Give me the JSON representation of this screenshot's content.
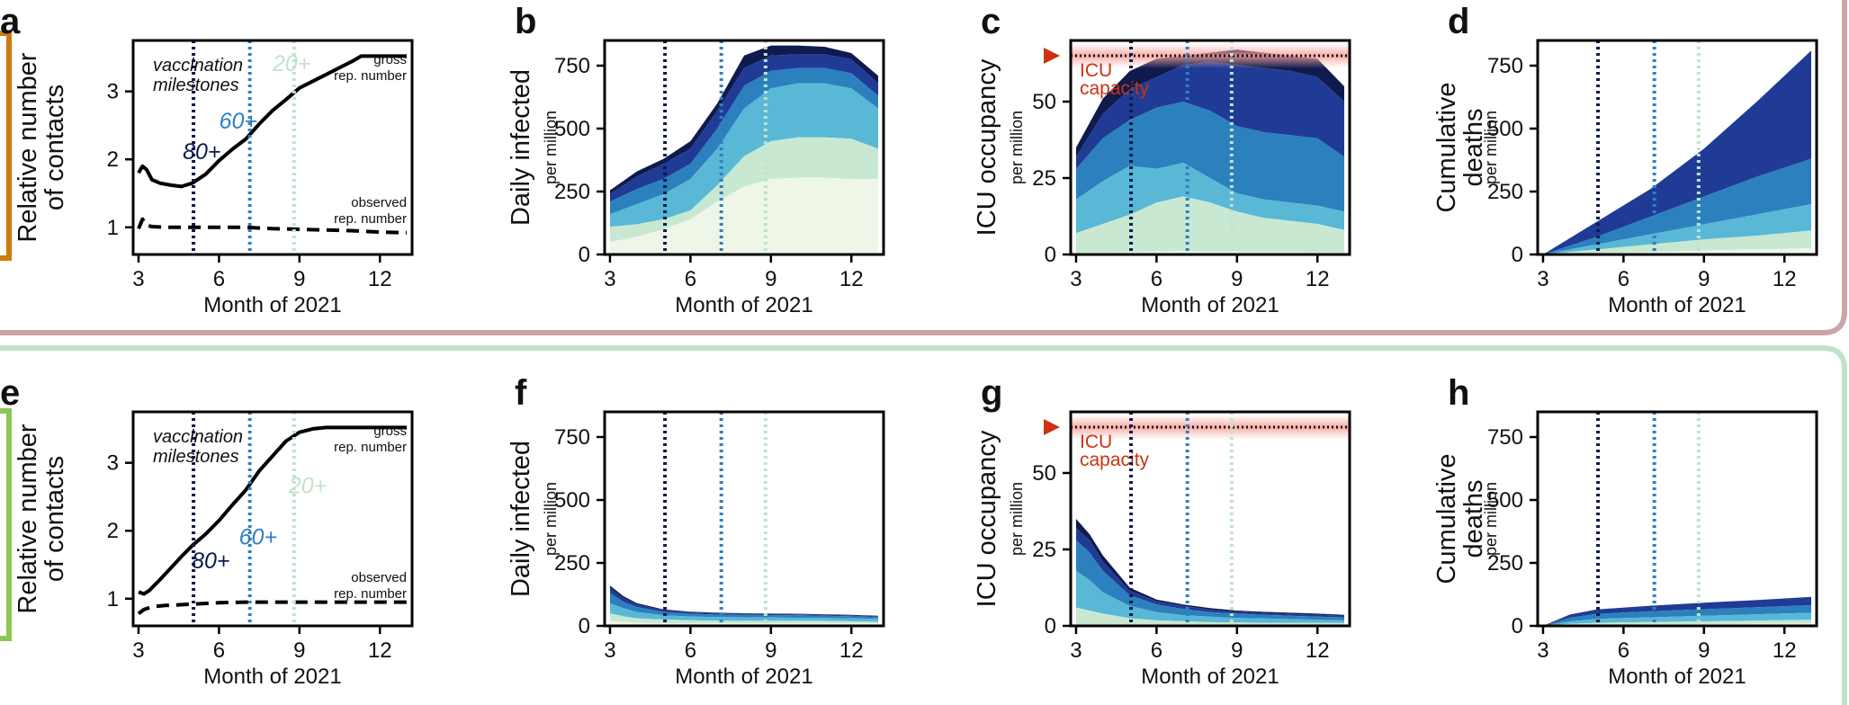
{
  "figure": {
    "colors": {
      "top_bracket": "#d07a12",
      "bottom_bracket": "#8dc753",
      "top_divider": "#c9a4a8",
      "bottom_divider": "#bfe3c4",
      "icu_line": "#cc3311",
      "age_80": "#0e1a4d",
      "age_60": "#2f7fc2",
      "age_20": "#bfe3cc",
      "stack_layers": [
        "#eef6e8",
        "#c8e8d2",
        "#58b8d6",
        "#2b80bd",
        "#1f3b95",
        "#0f1b4d"
      ]
    }
  },
  "chart_data": [
    {
      "id": "a",
      "panel": "a",
      "type": "line",
      "xlabel": "Month of 2021",
      "ylabel": "Relative number\nof contacts",
      "xlim": [
        2.8,
        13.2
      ],
      "ylim": [
        0.6,
        3.75
      ],
      "xticks": [
        3,
        6,
        9,
        12
      ],
      "yticks": [
        1,
        2,
        3
      ],
      "annotation": "vaccination\nmilestones",
      "milestones": [
        {
          "label": "80+",
          "x": 5.05,
          "color": "#0e1a4d"
        },
        {
          "label": "60+",
          "x": 7.15,
          "color": "#2f7fc2"
        },
        {
          "label": "20+",
          "x": 8.8,
          "color": "#bfe3cc"
        }
      ],
      "series": [
        {
          "name": "gross\nrep. number",
          "style": "solid",
          "x": [
            3.0,
            3.15,
            3.3,
            3.5,
            3.8,
            4.2,
            4.6,
            5.0,
            5.5,
            6.0,
            6.5,
            7.0,
            7.5,
            8.0,
            8.5,
            9.0,
            9.5,
            10.0,
            10.5,
            11.0,
            11.3,
            12.0,
            13.0
          ],
          "y": [
            1.8,
            1.9,
            1.85,
            1.7,
            1.65,
            1.62,
            1.6,
            1.65,
            1.78,
            1.98,
            2.15,
            2.3,
            2.52,
            2.72,
            2.88,
            3.05,
            3.15,
            3.25,
            3.35,
            3.45,
            3.52,
            3.52,
            3.52
          ]
        },
        {
          "name": "observed\nrep. number",
          "style": "dashed",
          "x": [
            3.0,
            3.15,
            3.3,
            3.5,
            4.0,
            5.0,
            6.0,
            7.0,
            8.0,
            9.0,
            10.0,
            11.0,
            12.0,
            13.0
          ],
          "y": [
            0.98,
            1.12,
            1.03,
            1.01,
            1.0,
            1.0,
            1.0,
            1.0,
            0.98,
            0.97,
            0.96,
            0.95,
            0.93,
            0.92
          ]
        }
      ]
    },
    {
      "id": "b",
      "panel": "b",
      "type": "area",
      "xlabel": "Month of 2021",
      "ylabel": "Daily infected",
      "ylabel_sub": "per million",
      "xlim": [
        2.8,
        13.2
      ],
      "ylim": [
        0,
        850
      ],
      "xticks": [
        3,
        6,
        9,
        12
      ],
      "yticks": [
        0,
        250,
        500,
        750
      ],
      "milestones": [
        5.05,
        7.15,
        8.8
      ],
      "x": [
        3,
        4,
        5,
        6,
        7,
        8,
        9,
        10,
        11,
        12,
        13
      ],
      "layers": [
        [
          50,
          70,
          100,
          140,
          210,
          270,
          300,
          305,
          305,
          300,
          300
        ],
        [
          110,
          120,
          140,
          175,
          275,
          390,
          450,
          465,
          465,
          460,
          420
        ],
        [
          160,
          200,
          240,
          300,
          420,
          580,
          660,
          680,
          680,
          660,
          580
        ],
        [
          210,
          260,
          300,
          360,
          500,
          670,
          730,
          740,
          740,
          720,
          630
        ],
        [
          240,
          310,
          360,
          420,
          570,
          740,
          790,
          795,
          795,
          775,
          680
        ],
        [
          255,
          330,
          380,
          450,
          600,
          790,
          830,
          830,
          825,
          800,
          710
        ]
      ]
    },
    {
      "id": "c",
      "panel": "c",
      "type": "area",
      "xlabel": "Month of 2021",
      "ylabel": "ICU occupancy",
      "ylabel_sub": "per million",
      "xlim": [
        2.8,
        13.2
      ],
      "ylim": [
        0,
        70
      ],
      "xticks": [
        3,
        6,
        9,
        12
      ],
      "yticks": [
        0,
        25,
        50
      ],
      "milestones": [
        5.05,
        7.15,
        8.8
      ],
      "capacity": {
        "value": 65,
        "label": "ICU\ncapacity"
      },
      "x": [
        3,
        4,
        5,
        6,
        7,
        8,
        9,
        10,
        11,
        12,
        13
      ],
      "layers": [
        [
          0.5,
          0.6,
          0.8,
          1.0,
          1.1,
          1.0,
          0.9,
          0.8,
          0.8,
          0.7,
          0.6
        ],
        [
          7,
          10,
          13,
          17,
          19,
          17,
          14,
          12,
          11,
          10,
          8
        ],
        [
          18,
          24,
          29,
          28,
          30,
          25,
          20,
          18,
          17,
          16,
          14
        ],
        [
          28,
          38,
          44,
          48,
          50,
          47,
          42,
          40,
          39,
          38,
          32
        ],
        [
          32,
          46,
          54,
          58,
          62,
          63,
          62,
          61,
          60,
          58,
          50
        ],
        [
          35,
          51,
          60,
          64,
          65,
          66,
          67,
          66,
          65,
          64,
          55
        ]
      ]
    },
    {
      "id": "d",
      "panel": "d",
      "type": "area",
      "xlabel": "Month of 2021",
      "ylabel": "Cumulative\ndeaths",
      "ylabel_sub": "per million",
      "xlim": [
        2.8,
        13.2
      ],
      "ylim": [
        0,
        850
      ],
      "xticks": [
        3,
        6,
        9,
        12
      ],
      "yticks": [
        0,
        250,
        500,
        750
      ],
      "milestones": [
        5.05,
        7.15,
        8.8
      ],
      "x": [
        3,
        5,
        7,
        9,
        11,
        13
      ],
      "layers": [
        [
          0,
          5,
          10,
          16,
          20,
          25
        ],
        [
          0,
          20,
          40,
          60,
          75,
          95
        ],
        [
          0,
          40,
          80,
          120,
          160,
          200
        ],
        [
          0,
          70,
          150,
          230,
          310,
          380
        ],
        [
          0,
          130,
          260,
          420,
          610,
          810
        ]
      ]
    },
    {
      "id": "e",
      "panel": "e",
      "type": "line",
      "xlabel": "Month of 2021",
      "ylabel": "Relative number\nof contacts",
      "xlim": [
        2.8,
        13.2
      ],
      "ylim": [
        0.6,
        3.75
      ],
      "xticks": [
        3,
        6,
        9,
        12
      ],
      "yticks": [
        1,
        2,
        3
      ],
      "annotation": "vaccination\nmilestones",
      "milestones": [
        {
          "label": "80+",
          "x": 5.05,
          "color": "#0e1a4d"
        },
        {
          "label": "60+",
          "x": 7.15,
          "color": "#2f7fc2"
        },
        {
          "label": "20+",
          "x": 8.8,
          "color": "#bfe3cc"
        }
      ],
      "series": [
        {
          "name": "gross\nrep. number",
          "style": "solid",
          "x": [
            3.0,
            3.2,
            3.4,
            3.8,
            4.2,
            4.6,
            5.0,
            5.5,
            6.0,
            6.5,
            7.0,
            7.5,
            8.0,
            8.5,
            9.0,
            9.5,
            10.0,
            10.5,
            11.0,
            12.0,
            13.0
          ],
          "y": [
            1.1,
            1.07,
            1.12,
            1.28,
            1.45,
            1.62,
            1.78,
            1.95,
            2.15,
            2.38,
            2.6,
            2.88,
            3.1,
            3.32,
            3.45,
            3.5,
            3.52,
            3.52,
            3.52,
            3.52,
            3.52
          ]
        },
        {
          "name": "observed\nrep. number",
          "style": "dashed",
          "x": [
            3.0,
            3.2,
            3.5,
            4.0,
            5.0,
            6.0,
            7.0,
            8.0,
            9.0,
            10.0,
            11.0,
            12.0,
            13.0
          ],
          "y": [
            0.78,
            0.84,
            0.88,
            0.9,
            0.92,
            0.94,
            0.95,
            0.95,
            0.95,
            0.95,
            0.95,
            0.95,
            0.95
          ]
        }
      ]
    },
    {
      "id": "f",
      "panel": "f",
      "type": "area",
      "xlabel": "Month of 2021",
      "ylabel": "Daily infected",
      "ylabel_sub": "per million",
      "xlim": [
        2.8,
        13.2
      ],
      "ylim": [
        0,
        850
      ],
      "xticks": [
        3,
        6,
        9,
        12
      ],
      "yticks": [
        0,
        250,
        500,
        750
      ],
      "milestones": [
        5.05,
        7.15,
        8.8
      ],
      "x": [
        3,
        3.5,
        4,
        5,
        6,
        7,
        8,
        9,
        10,
        11,
        12,
        13
      ],
      "layers": [
        [
          20,
          15,
          12,
          10,
          10,
          10,
          10,
          10,
          10,
          10,
          10,
          10
        ],
        [
          50,
          38,
          30,
          25,
          22,
          20,
          20,
          20,
          20,
          20,
          18,
          16
        ],
        [
          90,
          70,
          55,
          42,
          37,
          35,
          34,
          33,
          32,
          31,
          30,
          28
        ],
        [
          130,
          95,
          75,
          55,
          48,
          45,
          44,
          43,
          42,
          40,
          38,
          35
        ],
        [
          150,
          110,
          85,
          62,
          54,
          50,
          48,
          47,
          46,
          44,
          42,
          38
        ],
        [
          160,
          118,
          90,
          65,
          56,
          52,
          50,
          49,
          48,
          46,
          44,
          40
        ]
      ]
    },
    {
      "id": "g",
      "panel": "g",
      "type": "area",
      "xlabel": "Month of 2021",
      "ylabel": "ICU occupancy",
      "ylabel_sub": "per million",
      "xlim": [
        2.8,
        13.2
      ],
      "ylim": [
        0,
        70
      ],
      "xticks": [
        3,
        6,
        9,
        12
      ],
      "yticks": [
        0,
        25,
        50
      ],
      "milestones": [
        5.05,
        7.15,
        8.8
      ],
      "capacity": {
        "value": 65,
        "label": "ICU\ncapacity"
      },
      "x": [
        3,
        3.5,
        4,
        5,
        6,
        7,
        8,
        9,
        10,
        11,
        12,
        13
      ],
      "layers": [
        [
          0.3,
          0.3,
          0.2,
          0.2,
          0.2,
          0.2,
          0.2,
          0.2,
          0.2,
          0.2,
          0.2,
          0.2
        ],
        [
          6,
          5,
          4,
          2.5,
          1.8,
          1.5,
          1.2,
          1.1,
          1,
          1,
          1,
          0.9
        ],
        [
          18,
          15,
          11,
          6.5,
          4.5,
          3.5,
          3,
          2.6,
          2.4,
          2.2,
          2,
          1.8
        ],
        [
          28,
          24,
          18,
          10,
          7,
          5.5,
          4.5,
          4,
          3.6,
          3.3,
          3,
          2.8
        ],
        [
          32,
          28,
          21,
          11.5,
          8,
          6.5,
          5.3,
          4.6,
          4.2,
          3.9,
          3.6,
          3.3
        ],
        [
          35,
          30,
          23,
          12.5,
          8.6,
          7,
          5.8,
          5,
          4.6,
          4.3,
          4,
          3.6
        ]
      ]
    },
    {
      "id": "h",
      "panel": "h",
      "type": "area",
      "xlabel": "Month of 2021",
      "ylabel": "Cumulative\ndeaths",
      "ylabel_sub": "per million",
      "xlim": [
        2.8,
        13.2
      ],
      "ylim": [
        0,
        850
      ],
      "xticks": [
        3,
        6,
        9,
        12
      ],
      "yticks": [
        0,
        250,
        500,
        750
      ],
      "milestones": [
        5.05,
        7.15,
        8.8
      ],
      "x": [
        3,
        4,
        5,
        7,
        9,
        11,
        13
      ],
      "layers": [
        [
          0,
          2,
          4,
          6,
          7,
          8,
          9
        ],
        [
          0,
          8,
          12,
          15,
          18,
          21,
          24
        ],
        [
          0,
          18,
          28,
          34,
          40,
          46,
          52
        ],
        [
          0,
          32,
          48,
          58,
          66,
          74,
          82
        ],
        [
          0,
          45,
          65,
          80,
          92,
          103,
          115
        ]
      ]
    }
  ]
}
